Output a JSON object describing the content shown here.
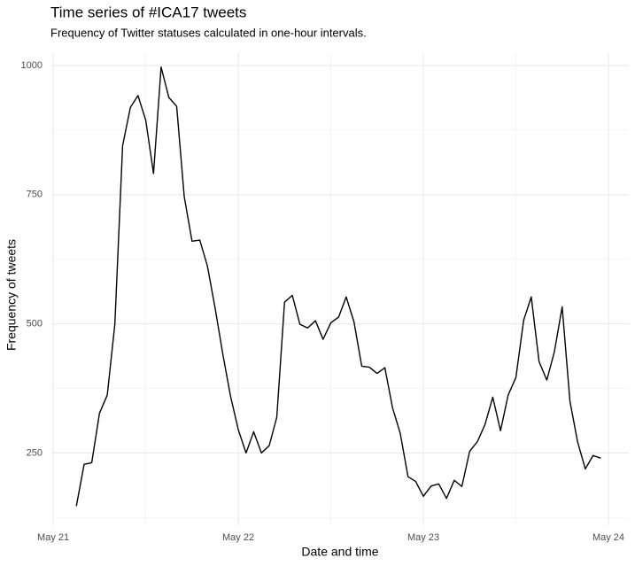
{
  "chart_data": {
    "type": "line",
    "title": "Time series of #ICA17 tweets",
    "subtitle": "Frequency of Twitter statuses calculated in one-hour intervals.",
    "x_label": "Date and time",
    "y_label": "Frequency of tweets",
    "x": [
      0.125,
      0.167,
      0.208,
      0.25,
      0.292,
      0.333,
      0.375,
      0.417,
      0.458,
      0.5,
      0.542,
      0.583,
      0.625,
      0.667,
      0.708,
      0.75,
      0.792,
      0.833,
      0.875,
      0.917,
      0.958,
      1,
      1.042,
      1.083,
      1.125,
      1.167,
      1.208,
      1.25,
      1.292,
      1.333,
      1.375,
      1.417,
      1.458,
      1.5,
      1.542,
      1.583,
      1.625,
      1.667,
      1.708,
      1.75,
      1.792,
      1.833,
      1.875,
      1.917,
      1.958,
      2,
      2.042,
      2.083,
      2.125,
      2.167,
      2.208,
      2.25,
      2.292,
      2.333,
      2.375,
      2.417,
      2.458,
      2.5,
      2.542,
      2.583,
      2.625,
      2.667,
      2.708,
      2.75,
      2.792,
      2.833,
      2.875,
      2.917,
      2.958
    ],
    "series": [
      {
        "color": "#000000",
        "values": [
          147,
          228,
          231,
          327,
          362,
          499,
          845,
          919,
          942,
          894,
          791,
          997,
          938,
          921,
          746,
          660,
          662,
          612,
          530,
          440,
          360,
          295,
          250,
          291,
          250,
          264,
          319,
          542,
          555,
          499,
          492,
          506,
          470,
          502,
          513,
          552,
          504,
          418,
          416,
          404,
          415,
          338,
          288,
          204,
          195,
          166,
          186,
          190,
          162,
          197,
          185,
          253,
          272,
          305,
          358,
          293,
          362,
          396,
          507,
          552,
          427,
          391,
          446,
          533,
          350,
          272,
          219,
          245,
          240
        ]
      }
    ],
    "xlim": [
      -0.01,
      3.11
    ],
    "xticks": [
      {
        "value": 0,
        "label": "May 21"
      },
      {
        "value": 1,
        "label": "May 22"
      },
      {
        "value": 2,
        "label": "May 23"
      },
      {
        "value": 3,
        "label": "May 24"
      }
    ],
    "ylim": [
      110,
      1024
    ],
    "yticks": [
      250,
      500,
      750,
      1000
    ],
    "grid": true,
    "minor_grid": true
  }
}
